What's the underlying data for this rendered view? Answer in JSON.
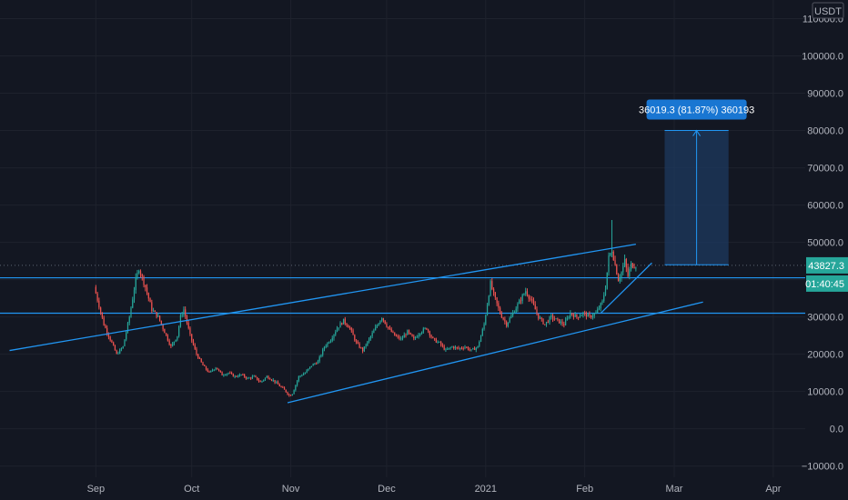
{
  "colors": {
    "background": "#131722",
    "grid": "#1e222d",
    "up": "#26a69a",
    "down": "#ef5350",
    "line": "#2962ff",
    "channel": "#2196f3",
    "badge": "#1976d2",
    "projection_fill": "#1e3a5f",
    "price_badge": "#26a69a"
  },
  "chart_data": {
    "type": "candlestick",
    "symbol_currency": "USDT",
    "y_ticks": [
      -10000,
      0,
      10000,
      20000,
      30000,
      40000,
      50000,
      60000,
      70000,
      80000,
      90000,
      100000,
      110000
    ],
    "y_tick_labels": [
      "−10000.0",
      "0.0",
      "10000.0",
      "20000.0",
      "30000.0",
      "40000.0",
      "50000.0",
      "60000.0",
      "70000.0",
      "80000.0",
      "90000.0",
      "100000.0",
      "110000.0"
    ],
    "ylim": [
      -13000,
      115000
    ],
    "x_labels": [
      "Sep",
      "Oct",
      "Nov",
      "Dec",
      "2021",
      "Feb",
      "Mar",
      "Apr"
    ],
    "x_label_days": [
      0,
      30,
      61,
      91,
      122,
      153,
      181,
      212
    ],
    "xlim_days": [
      -30,
      222
    ],
    "current_price": 43827.3,
    "current_price_label": "43827.3",
    "countdown_label": "01:40:45",
    "horizontal_levels": [
      40500,
      31000
    ],
    "price_path": [
      [
        0,
        38000
      ],
      [
        3,
        28000
      ],
      [
        5,
        24000
      ],
      [
        7,
        20000
      ],
      [
        9,
        22000
      ],
      [
        11,
        30000
      ],
      [
        13,
        40000
      ],
      [
        14,
        43000
      ],
      [
        16,
        38000
      ],
      [
        18,
        32000
      ],
      [
        20,
        30000
      ],
      [
        22,
        26000
      ],
      [
        24,
        22000
      ],
      [
        26,
        25000
      ],
      [
        27,
        30000
      ],
      [
        28,
        32000
      ],
      [
        30,
        25000
      ],
      [
        32,
        20000
      ],
      [
        34,
        17000
      ],
      [
        36,
        15000
      ],
      [
        38,
        16500
      ],
      [
        40,
        14500
      ],
      [
        42,
        15000
      ],
      [
        44,
        14000
      ],
      [
        46,
        14500
      ],
      [
        48,
        13500
      ],
      [
        50,
        14000
      ],
      [
        52,
        12500
      ],
      [
        54,
        14000
      ],
      [
        56,
        13000
      ],
      [
        58,
        11500
      ],
      [
        60,
        10000
      ],
      [
        61,
        9000
      ],
      [
        62,
        9500
      ],
      [
        64,
        14000
      ],
      [
        66,
        15000
      ],
      [
        68,
        17000
      ],
      [
        70,
        18000
      ],
      [
        72,
        22000
      ],
      [
        74,
        24000
      ],
      [
        76,
        27000
      ],
      [
        78,
        29000
      ],
      [
        80,
        27000
      ],
      [
        82,
        23000
      ],
      [
        84,
        21000
      ],
      [
        86,
        24000
      ],
      [
        88,
        27000
      ],
      [
        90,
        30000
      ],
      [
        92,
        27000
      ],
      [
        94,
        25000
      ],
      [
        96,
        24000
      ],
      [
        98,
        26000
      ],
      [
        100,
        24000
      ],
      [
        102,
        26000
      ],
      [
        104,
        27000
      ],
      [
        106,
        24000
      ],
      [
        108,
        23000
      ],
      [
        110,
        21000
      ],
      [
        112,
        22000
      ],
      [
        114,
        21500
      ],
      [
        116,
        22000
      ],
      [
        118,
        21000
      ],
      [
        120,
        22000
      ],
      [
        122,
        28000
      ],
      [
        124,
        39000
      ],
      [
        125,
        36000
      ],
      [
        127,
        31000
      ],
      [
        129,
        28000
      ],
      [
        131,
        31000
      ],
      [
        133,
        34000
      ],
      [
        135,
        37000
      ],
      [
        137,
        34000
      ],
      [
        139,
        30000
      ],
      [
        141,
        28000
      ],
      [
        143,
        30000
      ],
      [
        145,
        29000
      ],
      [
        147,
        28000
      ],
      [
        149,
        31000
      ],
      [
        151,
        30000
      ],
      [
        153,
        31000
      ],
      [
        155,
        30000
      ],
      [
        157,
        31000
      ],
      [
        159,
        34000
      ],
      [
        160,
        38000
      ],
      [
        161,
        46000
      ],
      [
        162,
        48000
      ],
      [
        163,
        44000
      ],
      [
        164,
        40000
      ],
      [
        165,
        42000
      ],
      [
        166,
        45000
      ],
      [
        167,
        41000
      ],
      [
        168,
        44000
      ],
      [
        169,
        43827.3
      ]
    ],
    "channel_upper": [
      [
        -27,
        21000
      ],
      [
        169,
        49500
      ]
    ],
    "channel_lower": [
      [
        60,
        7000
      ],
      [
        190,
        34000
      ]
    ],
    "support_line": [
      [
        158,
        31000
      ],
      [
        174,
        44500
      ]
    ],
    "projection": {
      "day_start": 178,
      "day_end": 198,
      "price_from": 44000,
      "price_to": 80000,
      "label": "36019.3 (81.87%) 360193"
    }
  }
}
